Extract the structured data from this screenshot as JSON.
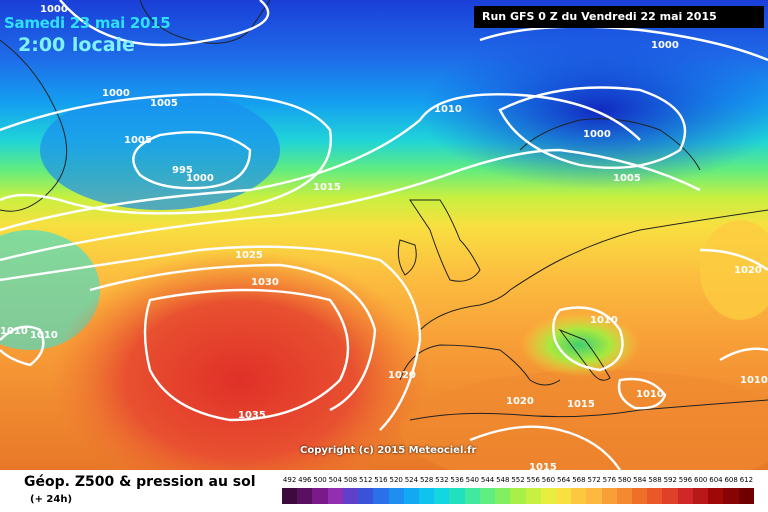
{
  "header": {
    "date": "Samedi 23 mai 2015",
    "time": "2:00 locale",
    "run": "Run GFS 0 Z du Vendredi 22 mai 2015"
  },
  "map": {
    "copyright": "Copyright (c) 2015 Meteociel.fr",
    "isobar_labels": [
      "1000",
      "1000",
      "1005",
      "1005",
      "995",
      "1000",
      "1010",
      "1000",
      "1000",
      "1005",
      "1015",
      "1025",
      "1030",
      "1035",
      "1020",
      "1010",
      "1010",
      "1010",
      "1020",
      "1015",
      "1010",
      "1020",
      "1010",
      "1015"
    ]
  },
  "footer": {
    "variable": "Géop. Z500 & pression au sol",
    "offset": "(+ 24h)",
    "scale": [
      "492",
      "496",
      "500",
      "504",
      "508",
      "512",
      "516",
      "520",
      "524",
      "528",
      "532",
      "536",
      "540",
      "544",
      "548",
      "552",
      "556",
      "560",
      "564",
      "568",
      "572",
      "576",
      "580",
      "584",
      "588",
      "592",
      "596",
      "600",
      "604",
      "608",
      "612"
    ],
    "colors": [
      "#3c0a3c",
      "#5a1060",
      "#7a1a8a",
      "#9030b0",
      "#6040c8",
      "#3a52d8",
      "#2a70e8",
      "#1e8ef0",
      "#12a8f2",
      "#10c2ee",
      "#12d6e0",
      "#20e0c0",
      "#40e8a0",
      "#60ee80",
      "#80f060",
      "#a8f048",
      "#c8f040",
      "#e8ee40",
      "#f8e040",
      "#fcc840",
      "#fcb840",
      "#f8a038",
      "#f48a30",
      "#ee7028",
      "#e85828",
      "#e04028",
      "#d02828",
      "#b81818",
      "#a00808",
      "#880404",
      "#700000"
    ]
  }
}
